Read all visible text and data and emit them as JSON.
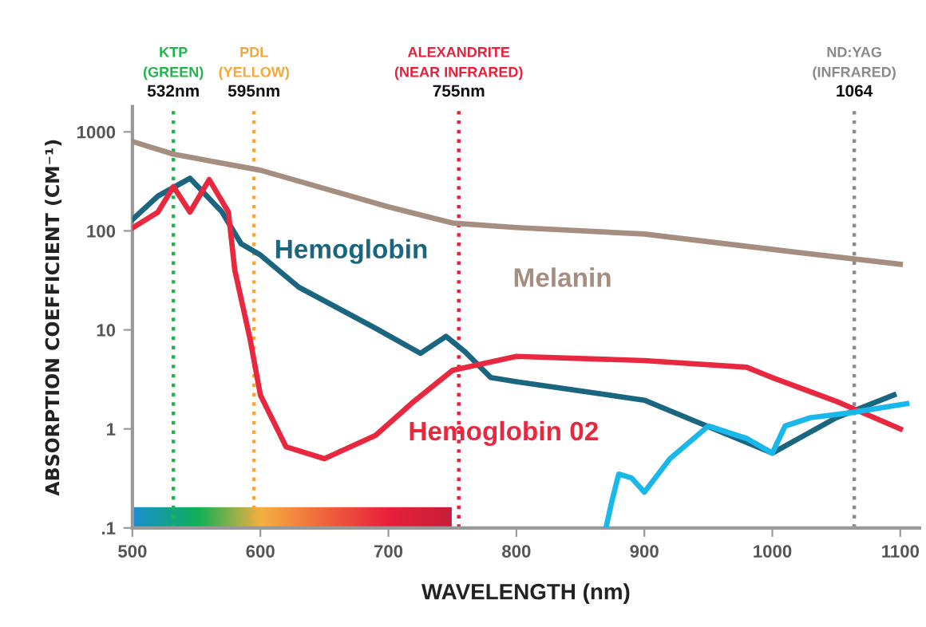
{
  "chart_data": {
    "type": "line",
    "xlabel": "WAVELENGTH (nm)",
    "ylabel": "ABSORPTION COEFFICIENT (CM⁻¹)",
    "log": "y",
    "xlim": [
      500,
      1115
    ],
    "ylim": [
      0.1,
      1800
    ],
    "xticks": [
      500,
      600,
      700,
      800,
      900,
      1000,
      1100
    ],
    "yticks": [
      {
        "value": 0.1,
        "label": ".1"
      },
      1,
      10,
      100,
      1000
    ],
    "grid": false,
    "legend": false,
    "marker": "none",
    "line_style": "solid",
    "series": [
      {
        "name": "Melanin",
        "color": "#a58e80",
        "x": [
          500,
          532,
          600,
          700,
          750,
          800,
          900,
          1000,
          1100
        ],
        "values": [
          800,
          595,
          410,
          175,
          120,
          108,
          93,
          65,
          46
        ]
      },
      {
        "name": "Hemoglobin",
        "color": "#1a6680",
        "x": [
          500,
          520,
          545,
          570,
          585,
          600,
          630,
          690,
          725,
          745,
          760,
          780,
          800,
          900,
          1000,
          1050,
          1095
        ],
        "values": [
          130,
          225,
          340,
          155,
          74,
          57,
          27,
          10.4,
          5.8,
          8.6,
          6,
          3.3,
          3.0,
          1.95,
          0.57,
          1.3,
          2.2
        ]
      },
      {
        "name": "Hemoglobin 02",
        "color": "#e8283f",
        "x": [
          500,
          520,
          532,
          545,
          560,
          575,
          580,
          592,
          600,
          620,
          650,
          690,
          720,
          750,
          800,
          900,
          980,
          1000,
          1050,
          1100
        ],
        "values": [
          107,
          155,
          280,
          155,
          330,
          155,
          40,
          8,
          2.2,
          0.66,
          0.5,
          0.86,
          1.9,
          3.9,
          5.4,
          4.9,
          4.2,
          3.3,
          1.9,
          1.0
        ]
      },
      {
        "color": "#1ab8ea",
        "x": [
          870,
          875,
          880,
          890,
          900,
          920,
          950,
          980,
          1000,
          1010,
          1030,
          1060,
          1105
        ],
        "values": [
          0.1,
          0.195,
          0.35,
          0.32,
          0.23,
          0.5,
          1.07,
          0.8,
          0.57,
          1.07,
          1.3,
          1.45,
          1.8
        ]
      }
    ],
    "ref_lines": [
      {
        "axis": "x",
        "value": 532,
        "label": "KTP\n(GREEN)\n532nm",
        "color": "#1fb54a",
        "line_style": "dotted"
      },
      {
        "axis": "x",
        "value": 595,
        "label": "PDL\n(YELLOW)\n595nm",
        "color": "#f7a738",
        "line_style": "dotted"
      },
      {
        "axis": "x",
        "value": 755,
        "label": "ALEXANDRITE\n(NEAR INFRARED)\n755nm",
        "color": "#e8203c",
        "line_style": "dotted"
      },
      {
        "axis": "x",
        "value": 1064,
        "label": "ND:YAG\n(INFRARED)\n1064",
        "color": "#8a8a8a",
        "line_style": "dotted"
      }
    ]
  }
}
